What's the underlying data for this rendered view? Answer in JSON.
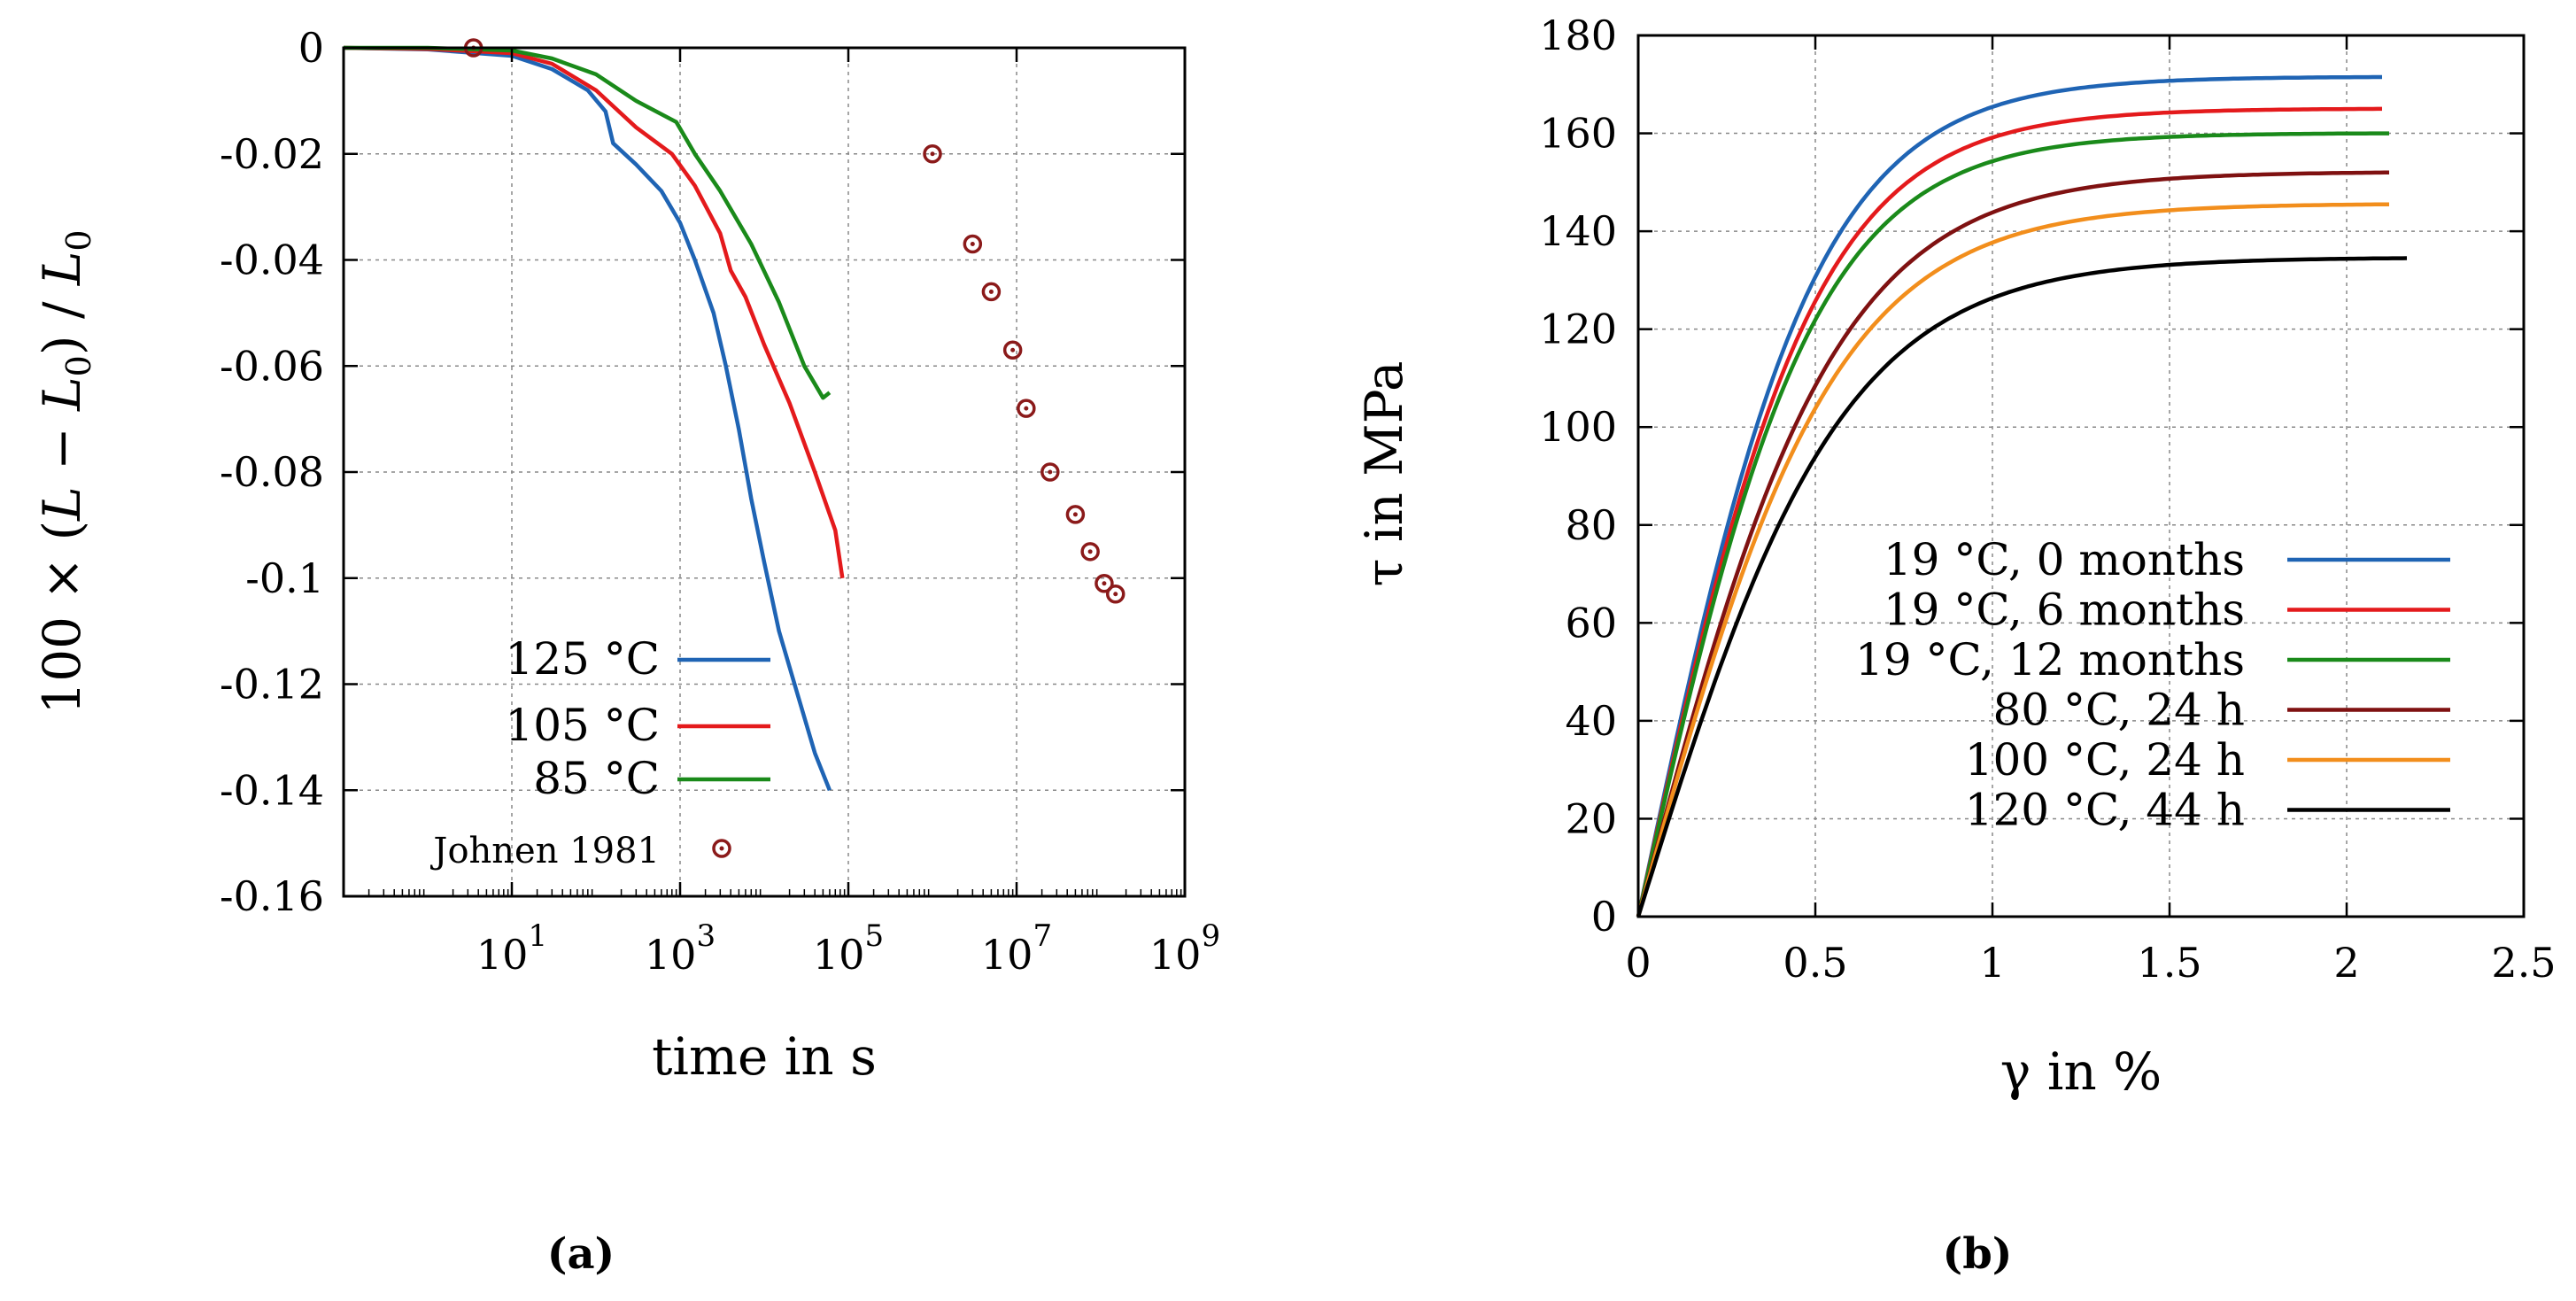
{
  "figure": {
    "panel_a_label": "(a)",
    "panel_b_label": "(b)"
  },
  "chart_data": [
    {
      "type": "line",
      "panel": "a",
      "xlabel": "time in s",
      "ylabel": "100 × (L − L0) / L0",
      "ylabel_parts": {
        "prefix": "100 × (",
        "L": "L",
        "minus": " − ",
        "L0a": "L",
        "sub0a": "0",
        "mid": ") / ",
        "L0b": "L",
        "sub0b": "0"
      },
      "xscale": "log",
      "xlim": [
        0.1,
        1000000000
      ],
      "ylim": [
        -0.16,
        0
      ],
      "grid": true,
      "legend_position": "bottom-left",
      "xticks": [
        {
          "value": 10,
          "base": "10",
          "exp": "1"
        },
        {
          "value": 1000,
          "base": "10",
          "exp": "3"
        },
        {
          "value": 100000,
          "base": "10",
          "exp": "5"
        },
        {
          "value": 10000000,
          "base": "10",
          "exp": "7"
        },
        {
          "value": 1000000000,
          "base": "10",
          "exp": "9"
        }
      ],
      "yticks": [
        {
          "value": 0,
          "label": "0"
        },
        {
          "value": -0.02,
          "label": "-0.02"
        },
        {
          "value": -0.04,
          "label": "-0.04"
        },
        {
          "value": -0.06,
          "label": "-0.06"
        },
        {
          "value": -0.08,
          "label": "-0.08"
        },
        {
          "value": -0.1,
          "label": "-0.1"
        },
        {
          "value": -0.12,
          "label": "-0.12"
        },
        {
          "value": -0.14,
          "label": "-0.14"
        },
        {
          "value": -0.16,
          "label": "-0.16"
        }
      ],
      "series": [
        {
          "name": "125 °C",
          "color": "#1f64b4",
          "style": "line",
          "points": [
            [
              0.1,
              0
            ],
            [
              1,
              -0.0003
            ],
            [
              10,
              -0.0015
            ],
            [
              30,
              -0.004
            ],
            [
              80,
              -0.008
            ],
            [
              130,
              -0.012
            ],
            [
              160,
              -0.018
            ],
            [
              300,
              -0.022
            ],
            [
              600,
              -0.027
            ],
            [
              1000,
              -0.033
            ],
            [
              1500,
              -0.04
            ],
            [
              2500,
              -0.05
            ],
            [
              3500,
              -0.06
            ],
            [
              5000,
              -0.072
            ],
            [
              7000,
              -0.085
            ],
            [
              10000,
              -0.097
            ],
            [
              15000,
              -0.11
            ],
            [
              25000,
              -0.122
            ],
            [
              40000,
              -0.133
            ],
            [
              60000,
              -0.14
            ]
          ]
        },
        {
          "name": "105 °C",
          "color": "#e41a1c",
          "style": "line",
          "points": [
            [
              0.1,
              0
            ],
            [
              1,
              -0.0002
            ],
            [
              10,
              -0.001
            ],
            [
              30,
              -0.003
            ],
            [
              100,
              -0.008
            ],
            [
              300,
              -0.015
            ],
            [
              800,
              -0.02
            ],
            [
              1500,
              -0.026
            ],
            [
              3000,
              -0.035
            ],
            [
              4000,
              -0.042
            ],
            [
              6000,
              -0.047
            ],
            [
              10000,
              -0.056
            ],
            [
              20000,
              -0.067
            ],
            [
              40000,
              -0.08
            ],
            [
              70000,
              -0.091
            ],
            [
              85000,
              -0.1
            ]
          ]
        },
        {
          "name": "85 °C",
          "color": "#1a8a1a",
          "style": "line",
          "points": [
            [
              0.1,
              0
            ],
            [
              1,
              0
            ],
            [
              10,
              -0.0005
            ],
            [
              30,
              -0.002
            ],
            [
              100,
              -0.005
            ],
            [
              300,
              -0.01
            ],
            [
              900,
              -0.014
            ],
            [
              1500,
              -0.02
            ],
            [
              3000,
              -0.027
            ],
            [
              7000,
              -0.037
            ],
            [
              15000,
              -0.048
            ],
            [
              30000,
              -0.06
            ],
            [
              50000,
              -0.066
            ],
            [
              60000,
              -0.065
            ]
          ]
        },
        {
          "name": "Johnen 1981",
          "color": "#8b1a1a",
          "style": "markers",
          "points": [
            [
              3.5,
              0
            ],
            [
              1000000,
              -0.02
            ],
            [
              3000000,
              -0.037
            ],
            [
              5000000,
              -0.046
            ],
            [
              9000000,
              -0.057
            ],
            [
              13000000,
              -0.068
            ],
            [
              25000000,
              -0.08
            ],
            [
              50000000,
              -0.088
            ],
            [
              75000000,
              -0.095
            ],
            [
              110000000,
              -0.101
            ],
            [
              150000000,
              -0.103
            ]
          ]
        }
      ]
    },
    {
      "type": "line",
      "panel": "b",
      "xlabel": "γ in %",
      "ylabel": "τ in MPa",
      "xlim": [
        0,
        2.5
      ],
      "ylim": [
        0,
        180
      ],
      "grid": true,
      "legend_position": "bottom-right",
      "xticks": [
        {
          "value": 0,
          "label": "0"
        },
        {
          "value": 0.5,
          "label": "0.5"
        },
        {
          "value": 1,
          "label": "1"
        },
        {
          "value": 1.5,
          "label": "1.5"
        },
        {
          "value": 2,
          "label": "2"
        },
        {
          "value": 2.5,
          "label": "2.5"
        }
      ],
      "yticks": [
        {
          "value": 0,
          "label": "0"
        },
        {
          "value": 20,
          "label": "20"
        },
        {
          "value": 40,
          "label": "40"
        },
        {
          "value": 60,
          "label": "60"
        },
        {
          "value": 80,
          "label": "80"
        },
        {
          "value": 100,
          "label": "100"
        },
        {
          "value": 120,
          "label": "120"
        },
        {
          "value": 140,
          "label": "140"
        },
        {
          "value": 160,
          "label": "160"
        },
        {
          "value": 180,
          "label": "180"
        }
      ],
      "series": [
        {
          "name": "19 °C, 0 months",
          "color": "#1f64b4",
          "tau_max": 171.5,
          "gamma_end": 2.1,
          "shape": 0.5
        },
        {
          "name": "19 °C, 6 months",
          "color": "#e41a1c",
          "tau_max": 165,
          "gamma_end": 2.1,
          "shape": 0.5
        },
        {
          "name": "19 °C, 12 months",
          "color": "#1a8a1a",
          "tau_max": 160,
          "gamma_end": 2.12,
          "shape": 0.5
        },
        {
          "name": "80 °C, 24 h",
          "color": "#7f1111",
          "tau_max": 152,
          "gamma_end": 2.12,
          "shape": 0.56
        },
        {
          "name": "100 °C, 24 h",
          "color": "#f28e1c",
          "tau_max": 145.5,
          "gamma_end": 2.12,
          "shape": 0.56
        },
        {
          "name": "120 °C, 44 h",
          "color": "#000000",
          "tau_max": 134.5,
          "gamma_end": 2.17,
          "shape": 0.58
        }
      ]
    }
  ]
}
